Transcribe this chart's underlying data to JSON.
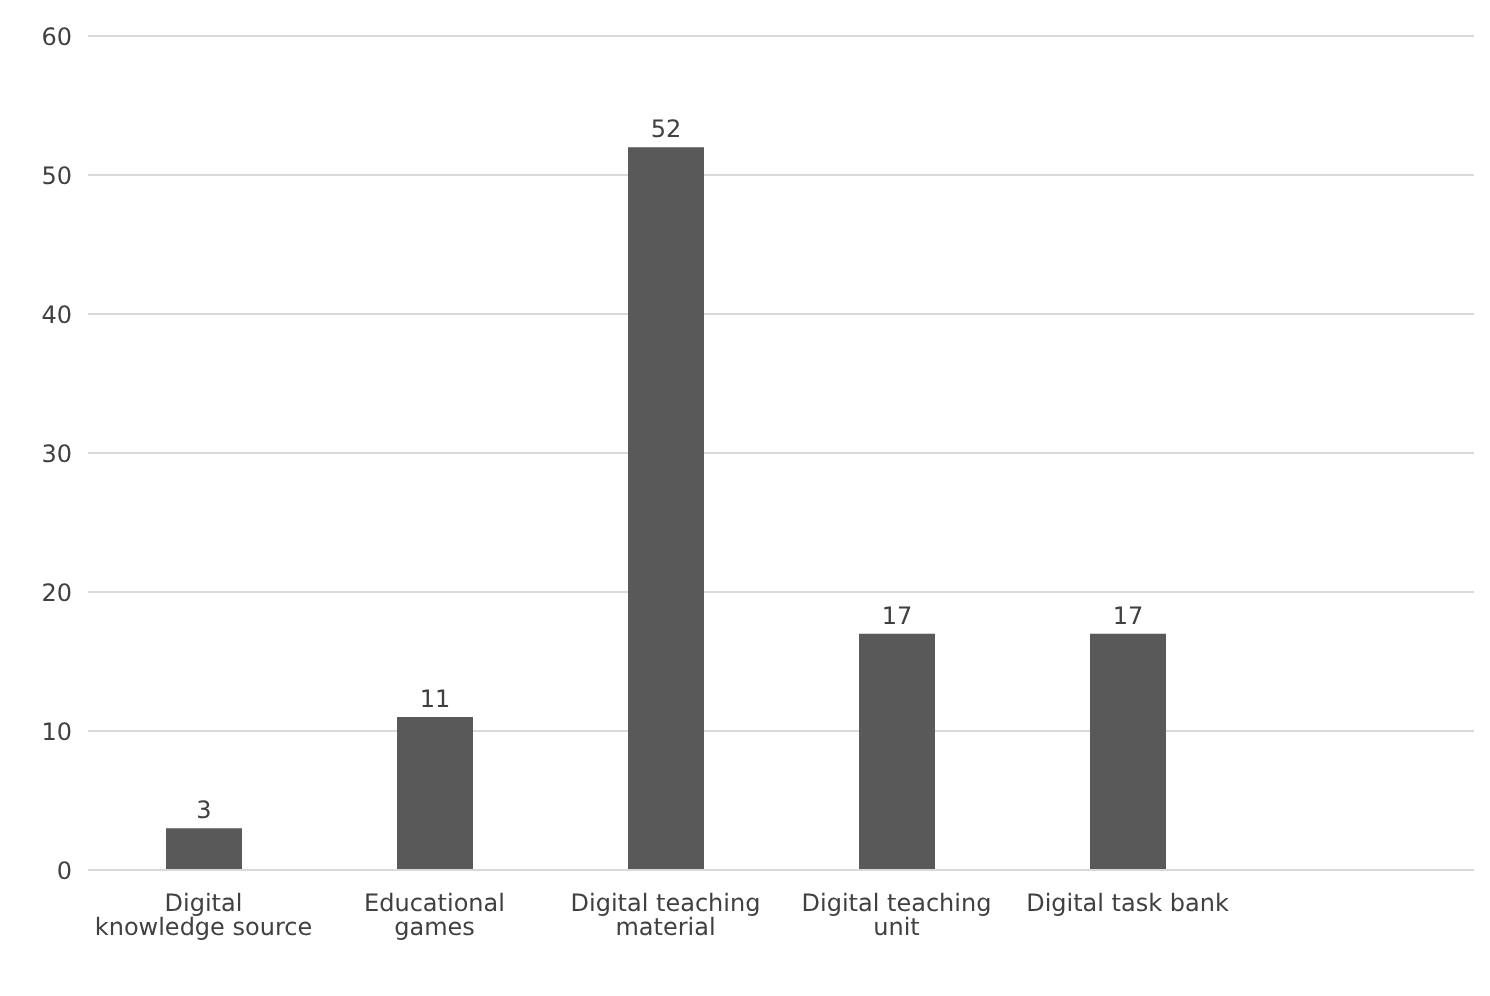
{
  "chart_data": {
    "type": "bar",
    "categories": [
      "Digital knowledge source",
      "Educational games",
      "Digital teaching material",
      "Digital teaching unit",
      "Digital task bank",
      null
    ],
    "values": [
      3,
      11,
      52,
      17,
      17,
      null
    ],
    "color": "#595959",
    "data_labels": true,
    "ylim": [
      0,
      60
    ],
    "yticks": [
      0,
      10,
      20,
      30,
      40,
      50,
      60
    ],
    "grid": "y"
  }
}
